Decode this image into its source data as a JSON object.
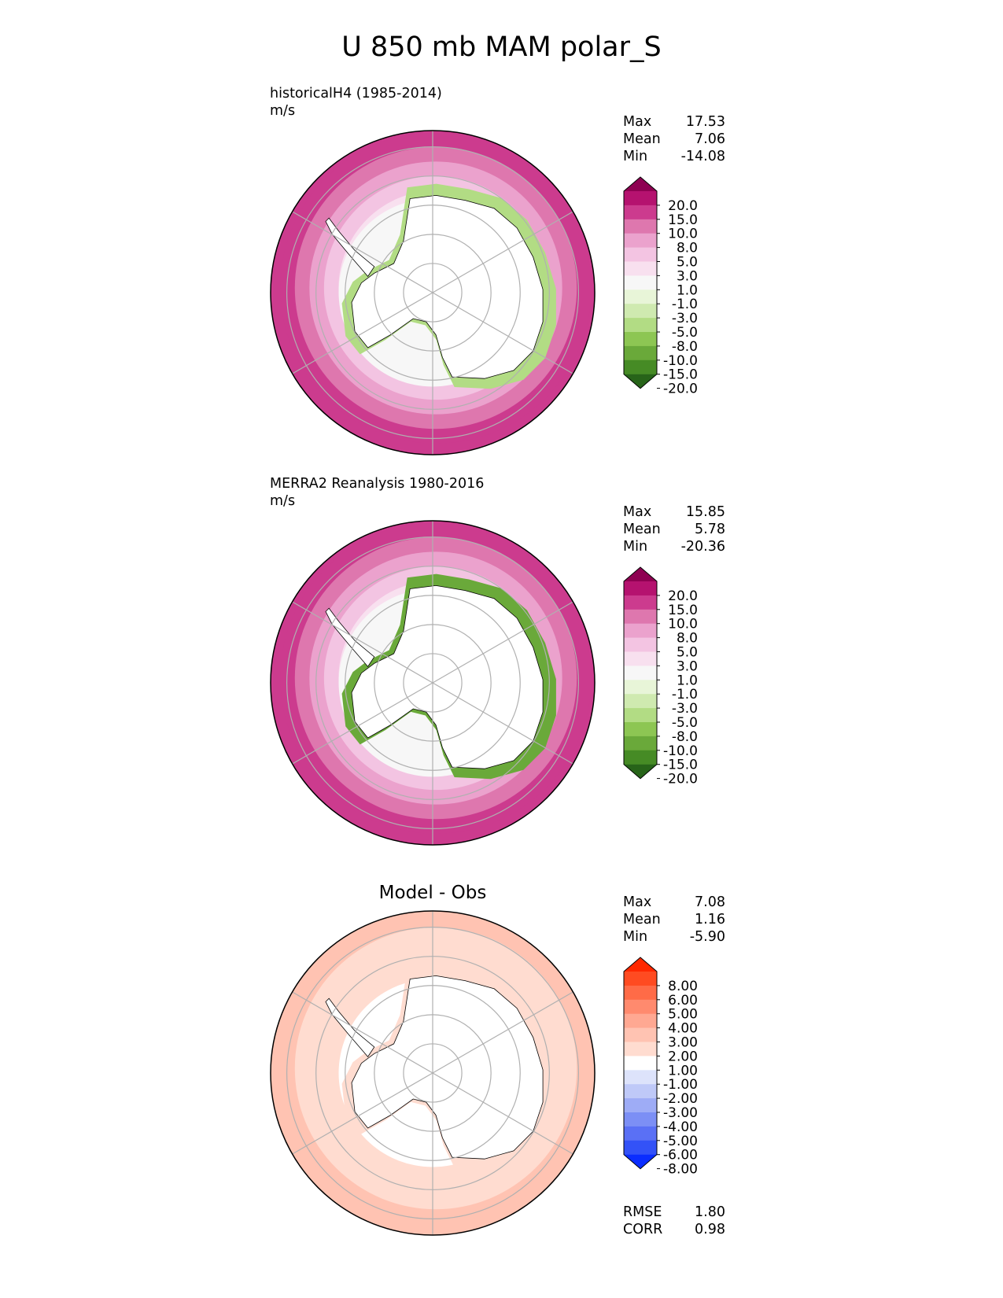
{
  "title": "U 850 mb MAM polar_S",
  "panels": [
    {
      "id": "test",
      "subtitle": "historicalH4 (1985-2014)",
      "units": "m/s",
      "stats": {
        "max": "17.53",
        "mean": "7.06",
        "min": "-14.08"
      },
      "colorbar": {
        "labels": [
          "20.0",
          "15.0",
          "10.0",
          "8.0",
          "5.0",
          "3.0",
          "1.0",
          "-1.0",
          "-3.0",
          "-5.0",
          "-8.0",
          "-10.0",
          "-15.0",
          "-20.0"
        ],
        "colors": [
          "#8e0152",
          "#b5126f",
          "#cc3b8e",
          "#de77ae",
          "#eba2cd",
          "#f3c4e2",
          "#f8e0ef",
          "#f7f7f7",
          "#e8f5d8",
          "#cfeab0",
          "#b2dc84",
          "#8dc653",
          "#6aa93a",
          "#468b25",
          "#276419"
        ]
      },
      "field": {
        "outer_ring_color": "#cc3b8e",
        "ring_colors": [
          "#cc3b8e",
          "#de77ae",
          "#eba2cd",
          "#f3c4e2",
          "#f8e0ef"
        ],
        "coast_band_color": "#b2dc84"
      }
    },
    {
      "id": "reference",
      "subtitle": "MERRA2 Reanalysis 1980-2016",
      "units": "m/s",
      "stats": {
        "max": "15.85",
        "mean": "5.78",
        "min": "-20.36"
      },
      "colorbar": {
        "labels": [
          "20.0",
          "15.0",
          "10.0",
          "8.0",
          "5.0",
          "3.0",
          "1.0",
          "-1.0",
          "-3.0",
          "-5.0",
          "-8.0",
          "-10.0",
          "-15.0",
          "-20.0"
        ],
        "colors": [
          "#8e0152",
          "#b5126f",
          "#cc3b8e",
          "#de77ae",
          "#eba2cd",
          "#f3c4e2",
          "#f8e0ef",
          "#f7f7f7",
          "#e8f5d8",
          "#cfeab0",
          "#b2dc84",
          "#8dc653",
          "#6aa93a",
          "#468b25",
          "#276419"
        ]
      },
      "field": {
        "outer_ring_color": "#cc3b8e",
        "ring_colors": [
          "#cc3b8e",
          "#de77ae",
          "#eba2cd",
          "#f3c4e2",
          "#f8e0ef"
        ],
        "coast_band_color": "#6aa93a"
      }
    },
    {
      "id": "diff",
      "title": "Model - Obs",
      "stats": {
        "max": "7.08",
        "mean": "1.16",
        "min": "-5.90"
      },
      "extra_stats": {
        "rmse": "1.80",
        "corr": "0.98"
      },
      "colorbar": {
        "labels": [
          "8.00",
          "6.00",
          "5.00",
          "4.00",
          "3.00",
          "2.00",
          "1.00",
          "-1.00",
          "-2.00",
          "-3.00",
          "-4.00",
          "-5.00",
          "-6.00",
          "-8.00"
        ],
        "colors": [
          "#ff2800",
          "#ff4b21",
          "#ff6b47",
          "#ff8a6e",
          "#ffa892",
          "#ffc3b2",
          "#ffdcd0",
          "#ffffff",
          "#dde3fb",
          "#bfc9f8",
          "#9eacf6",
          "#7c8ff5",
          "#5a70f5",
          "#3352f7",
          "#0a2dff"
        ]
      },
      "field": {
        "outer_ring_color": "#ffc3b2",
        "ring_colors": [
          "#ffc3b2",
          "#ffdcd0"
        ],
        "coast_band_color": "#ffdcd0"
      }
    }
  ]
}
